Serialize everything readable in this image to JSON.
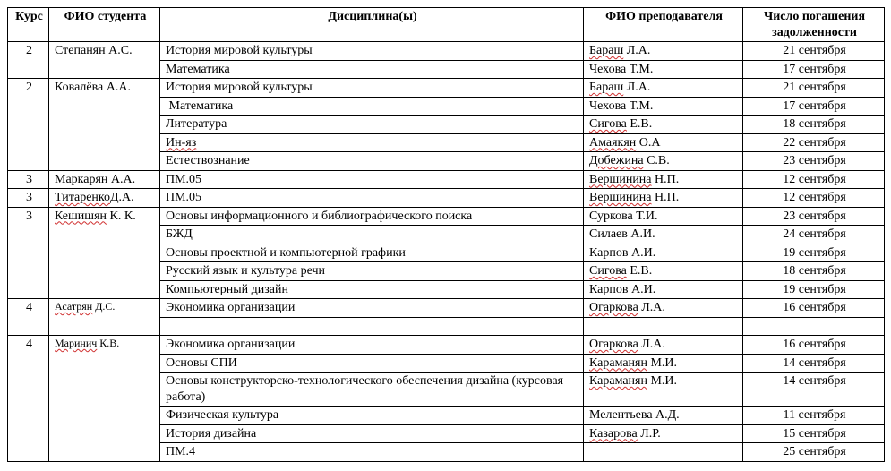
{
  "headers": {
    "course": "Курс",
    "student": "ФИО студента",
    "discipline": "Дисциплина(ы)",
    "teacher": "ФИО преподавателя",
    "date": "Число погашения задолженности"
  },
  "cells": {
    "c_2a": "2",
    "c_2b": "2",
    "c_3a": "3",
    "c_3b": "3",
    "c_3c": "3",
    "c_4a": "4",
    "c_4b": "4",
    "s_step": "Степанян А.С.",
    "s_kov": "Ковалёва А.А.",
    "s_mark": "Маркарян А.А.",
    "s_tit_a": "Титаренко",
    "s_tit_b": "Д.А.",
    "s_kesh_a": "Кешишян",
    "s_kesh_b": " К. К.",
    "s_asat_a": "Асатрян",
    "s_asat_b": " Д.С.",
    "s_mar_a": "Маринич",
    "s_mar_b": " К.В.",
    "d_imc": "История мировой культуры",
    "d_math": "Математика",
    "d_lit": "Литература",
    "d_inyaz": "Ин-яз",
    "d_est": "Естествознание",
    "d_pm05": "ПМ.05",
    "d_oibp": "Основы информационного и библиографического поиска",
    "d_bzhd": "БЖД",
    "d_opkg": "Основы проектной и компьютерной графики",
    "d_rus": "Русский язык и культура речи",
    "d_kd": "Компьютерный дизайн",
    "d_eo": "Экономика организации",
    "d_ospi": "Основы СПИ",
    "d_oktod": "Основы конструкторско-технологического обеспечения дизайна (курсовая работа)",
    "d_fk": "Физическая культура",
    "d_id": "История дизайна",
    "d_pm4": "ПМ.4",
    "t_bar_a": "Бараш",
    "t_bar_b": " Л.А.",
    "t_che": "Чехова Т.М.",
    "t_sig_a": "Сигова",
    "t_sig_b": " Е.В.",
    "t_ama_a": "Амаякян",
    "t_ama_b": " О.А",
    "t_dob_a": "Добежина",
    "t_dob_b": " С.В.",
    "t_ver_a": "Вершинина",
    "t_ver_b": " Н.П.",
    "t_sur": "Суркова Т.И.",
    "t_sil": "Силаев А.И.",
    "t_kar": "Карпов А.И.",
    "t_oga_a": "Огаркова",
    "t_oga_b": " Л.А.",
    "t_karam_a": "Караманян",
    "t_karam_b": " М.И.",
    "t_mel": "Мелентьева А.Д.",
    "t_kaz_a": "Казарова",
    "t_kaz_b": " Л.Р.",
    "dt_21": "21 сентября",
    "dt_17": "17 сентября",
    "dt_18": "18 сентября",
    "dt_22": "22 сентября",
    "dt_23": "23 сентября",
    "dt_12": "12 сентября",
    "dt_24": "24 сентября",
    "dt_19": "19 сентября",
    "dt_16": "16 сентября",
    "dt_14": "14 сентября",
    "dt_11": "11 сентября",
    "dt_15": "15 сентября",
    "dt_25": "25 сентября"
  }
}
